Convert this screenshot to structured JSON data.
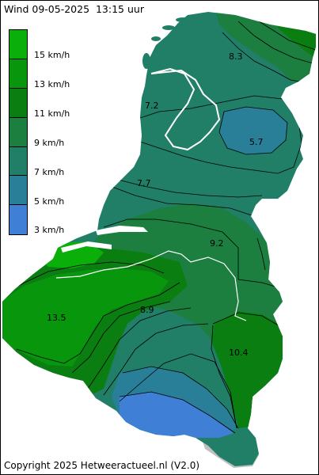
{
  "title": "Wind 09-05-2025  13:15 uur",
  "copyright": "Copyright 2025 Hetweeractueel.nl (V2.0)",
  "legend": [
    {
      "label": "15 km/h",
      "color": "#0aaf0a"
    },
    {
      "label": "13 km/h",
      "color": "#08960d"
    },
    {
      "label": "11 km/h",
      "color": "#0b7e12"
    },
    {
      "label": "9 km/h",
      "color": "#1c7f3f"
    },
    {
      "label": "7 km/h",
      "color": "#217f68"
    },
    {
      "label": "5 km/h",
      "color": "#2a7f98"
    },
    {
      "label": "3 km/h",
      "color": "#3f7fd6"
    }
  ],
  "map_labels": [
    {
      "value": "8.3"
    },
    {
      "value": "7.2"
    },
    {
      "value": "5.7"
    },
    {
      "value": "7.7"
    },
    {
      "value": "9.2"
    },
    {
      "value": "13.5"
    },
    {
      "value": "8.9"
    },
    {
      "value": "10.4"
    }
  ],
  "colors": {
    "nodata": "#c0c0c0",
    "contour": "#000000",
    "border": "#ffffff"
  }
}
